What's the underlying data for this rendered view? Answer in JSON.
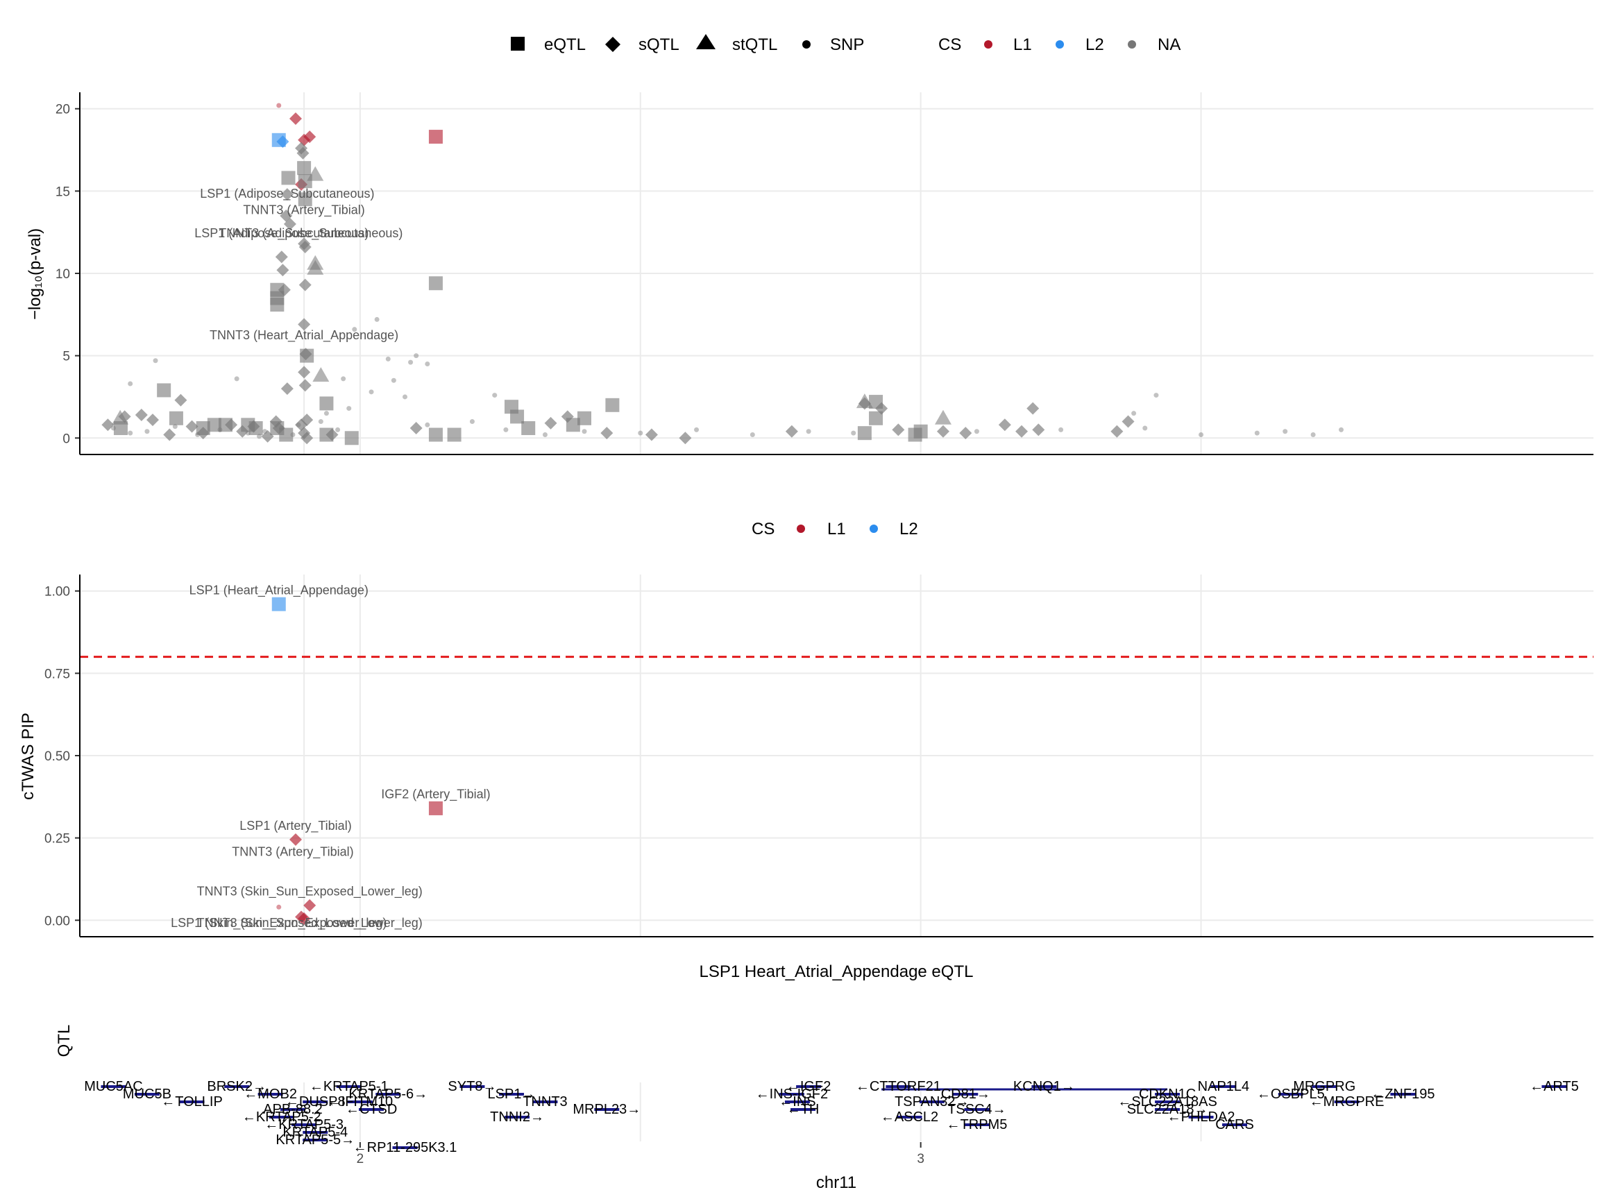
{
  "legend_top": {
    "shape_items": [
      {
        "label": "eQTL",
        "shape": "square"
      },
      {
        "label": "sQTL",
        "shape": "diamond"
      },
      {
        "label": "stQTL",
        "shape": "triangle"
      },
      {
        "label": "SNP",
        "shape": "dot"
      }
    ],
    "cs_title": "CS",
    "cs_items": [
      {
        "label": "L1",
        "color": "#b2182b"
      },
      {
        "label": "L2",
        "color": "#2b8cee"
      },
      {
        "label": "NA",
        "color": "#777777"
      }
    ]
  },
  "legend_mid": {
    "cs_title": "CS",
    "cs_items": [
      {
        "label": "L1",
        "color": "#b2182b"
      },
      {
        "label": "L2",
        "color": "#2b8cee"
      }
    ]
  },
  "panel1_ylabel": "−log₁₀(p-val)",
  "panel2_ylabel": "cTWAS PIP",
  "panel2_caption": "LSP1 Heart_Atrial_Appendage eQTL",
  "panel3_ylabel": "QTL",
  "xaxis": {
    "label": "chr11",
    "ticks": [
      "2",
      "3"
    ]
  },
  "colors": {
    "L1": "#b2182b",
    "L2": "#2b8cee",
    "NA": "#777777",
    "gene": "#1a1a8a",
    "threshold": "#e31a1c"
  },
  "chart_data": [
    {
      "type": "scatter",
      "title": "",
      "xlabel": "",
      "ylabel": "−log10(p-val)",
      "xlim": [
        1.5,
        4.2
      ],
      "ylim": [
        -1,
        21
      ],
      "yticks": [
        0,
        5,
        10,
        15,
        20
      ],
      "grid": true,
      "legend_position": "top",
      "series": [
        {
          "shape": "square",
          "cs": "L2",
          "x": [
            1.855
          ],
          "y": [
            18.1
          ]
        },
        {
          "shape": "square",
          "cs": "L1",
          "x": [
            2.135
          ],
          "y": [
            18.3
          ]
        },
        {
          "shape": "diamond",
          "cs": "L1",
          "x": [
            1.885,
            1.9,
            1.91,
            1.895
          ],
          "y": [
            19.4,
            18.1,
            18.3,
            15.4
          ]
        },
        {
          "shape": "diamond",
          "cs": "L2",
          "x": [
            1.862
          ],
          "y": [
            18.0
          ]
        },
        {
          "shape": "square",
          "cs": "NA",
          "x": [
            1.573,
            1.65,
            1.672,
            1.72,
            1.74,
            1.76,
            1.8,
            1.814,
            1.852,
            1.852,
            1.852,
            1.852,
            1.868,
            1.872,
            1.9,
            1.902,
            1.902,
            1.905,
            1.94,
            1.94,
            1.985,
            2.135,
            2.135,
            2.168,
            2.27,
            2.28,
            2.3,
            2.38,
            2.4,
            2.45,
            2.9,
            2.92,
            2.92,
            2.99,
            3.0
          ],
          "y": [
            0.6,
            2.9,
            1.2,
            0.6,
            0.8,
            0.8,
            0.8,
            0.6,
            9.0,
            8.5,
            8.1,
            0.6,
            0.2,
            15.8,
            16.4,
            15.6,
            14.5,
            5.0,
            2.1,
            0.2,
            0.0,
            9.4,
            0.2,
            0.2,
            1.9,
            1.3,
            0.6,
            0.8,
            1.2,
            2.0,
            0.3,
            2.2,
            1.2,
            0.2,
            0.4
          ]
        },
        {
          "shape": "diamond",
          "cs": "NA",
          "x": [
            1.55,
            1.58,
            1.61,
            1.63,
            1.66,
            1.68,
            1.7,
            1.72,
            1.77,
            1.79,
            1.81,
            1.835,
            1.85,
            1.855,
            1.86,
            1.862,
            1.865,
            1.868,
            1.87,
            1.875,
            1.87,
            1.895,
            1.898,
            1.9,
            1.902,
            1.902,
            1.9,
            1.903,
            1.9,
            1.902,
            1.905,
            1.895,
            1.9,
            1.905,
            1.95,
            2.1,
            2.34,
            2.37,
            2.44,
            2.52,
            2.58,
            2.77,
            2.9,
            2.93,
            2.96,
            3.04,
            3.08,
            3.15,
            3.18,
            3.2,
            3.21,
            3.35,
            3.37
          ],
          "y": [
            0.8,
            1.3,
            1.4,
            1.1,
            0.2,
            2.3,
            0.7,
            0.3,
            0.8,
            0.4,
            0.7,
            0.1,
            1.0,
            0.6,
            11.0,
            10.2,
            9.0,
            13.5,
            14.8,
            13.0,
            3.0,
            17.6,
            17.3,
            11.8,
            11.6,
            9.3,
            6.9,
            5.1,
            4.0,
            3.2,
            1.1,
            0.8,
            0.3,
            0.0,
            0.2,
            0.6,
            0.9,
            1.3,
            0.3,
            0.2,
            0.0,
            0.4,
            2.1,
            1.8,
            0.5,
            0.4,
            0.3,
            0.8,
            0.4,
            1.8,
            0.5,
            0.4,
            1.0
          ]
        },
        {
          "shape": "triangle",
          "cs": "NA",
          "x": [
            1.572,
            1.92,
            1.92,
            1.92,
            1.93,
            2.9,
            3.04
          ],
          "y": [
            1.2,
            16.0,
            10.6,
            10.3,
            3.8,
            2.2,
            1.2
          ]
        },
        {
          "shape": "dot",
          "cs": "L1",
          "x": [
            1.855
          ],
          "y": [
            20.2
          ]
        },
        {
          "shape": "dot",
          "cs": "NA",
          "x": [
            1.56,
            1.59,
            1.62,
            1.67,
            1.71,
            1.75,
            1.8,
            1.82,
            1.83,
            1.86,
            1.88,
            1.89,
            1.93,
            1.96,
            1.98,
            1.99,
            2.03,
            2.05,
            2.08,
            2.1,
            2.12,
            2.2,
            2.26,
            2.33,
            2.4,
            2.5,
            2.6,
            2.7,
            2.8,
            2.88,
            3.1,
            3.25,
            3.4,
            3.5,
            3.6,
            3.65,
            3.7,
            3.75,
            1.635,
            1.59,
            1.78,
            2.09,
            2.06,
            2.02,
            1.97,
            1.94,
            2.12,
            2.24,
            3.42,
            3.38
          ],
          "y": [
            0.6,
            0.3,
            0.4,
            0.7,
            0.2,
            0.5,
            0.3,
            0.1,
            0.4,
            0.6,
            0.2,
            0.8,
            1.0,
            0.5,
            1.8,
            6.6,
            7.2,
            4.8,
            2.5,
            5.0,
            4.5,
            1.0,
            0.5,
            0.2,
            0.4,
            0.3,
            0.5,
            0.2,
            0.4,
            0.3,
            0.4,
            0.5,
            0.6,
            0.2,
            0.3,
            0.4,
            0.2,
            0.5,
            4.7,
            3.3,
            3.6,
            4.6,
            3.5,
            2.8,
            3.6,
            1.5,
            0.8,
            2.6,
            2.6,
            1.5
          ]
        }
      ],
      "annotations": [
        {
          "text": "LSP1 (Adipose_Subcutaneous)",
          "x": 1.87,
          "y": 14.6
        },
        {
          "text": "TNNT3 (Artery_Tibial)",
          "x": 1.9,
          "y": 13.6
        },
        {
          "text": "LSP1 (Adipose_Subcutaneous)",
          "x": 1.86,
          "y": 12.2
        },
        {
          "text": "TNNT3 (Adipose_Subcutaneous)",
          "x": 1.912,
          "y": 12.2
        },
        {
          "text": "TNNT3 (Heart_Atrial_Appendage)",
          "x": 1.9,
          "y": 6.0
        }
      ]
    },
    {
      "type": "scatter",
      "title": "",
      "xlabel": "LSP1 Heart_Atrial_Appendage eQTL",
      "ylabel": "cTWAS PIP",
      "xlim": [
        1.5,
        4.2
      ],
      "ylim": [
        -0.05,
        1.05
      ],
      "yticks": [
        "0.00",
        "0.25",
        "0.50",
        "0.75",
        "1.00"
      ],
      "threshold": 0.8,
      "grid": true,
      "legend_position": "top",
      "series": [
        {
          "shape": "square",
          "cs": "L2",
          "x": [
            1.855
          ],
          "y": [
            0.96
          ]
        },
        {
          "shape": "square",
          "cs": "L1",
          "x": [
            2.135
          ],
          "y": [
            0.34
          ]
        },
        {
          "shape": "diamond",
          "cs": "L1",
          "x": [
            1.885,
            1.91,
            1.895,
            1.9
          ],
          "y": [
            0.245,
            0.045,
            0.01,
            0.005
          ]
        },
        {
          "shape": "dot",
          "cs": "L1",
          "x": [
            1.855
          ],
          "y": [
            0.04
          ]
        }
      ],
      "annotations": [
        {
          "text": "LSP1 (Heart_Atrial_Appendage)",
          "x": 1.855,
          "y": 0.99
        },
        {
          "text": "IGF2 (Artery_Tibial)",
          "x": 2.135,
          "y": 0.37
        },
        {
          "text": "LSP1 (Artery_Tibial)",
          "x": 1.885,
          "y": 0.275
        },
        {
          "text": "TNNT3 (Artery_Tibial)",
          "x": 1.88,
          "y": 0.195
        },
        {
          "text": "TNNT3 (Skin_Sun_Exposed_Lower_leg)",
          "x": 1.91,
          "y": 0.075
        },
        {
          "text": "LSP1 (Skin_Sun_Exposed_Lower_leg)",
          "x": 1.855,
          "y": -0.02
        },
        {
          "text": "TNNT3 (Skin_Sun_Exposed_Lower_leg)",
          "x": 1.91,
          "y": -0.02
        }
      ]
    },
    {
      "type": "gene_track",
      "xlabel": "chr11",
      "ylabel": "QTL",
      "xticks": [
        "2",
        "3"
      ],
      "genes": [
        {
          "label": "MUC5AC",
          "x": 1.56,
          "row": 0
        },
        {
          "label": "MUC5B",
          "x": 1.62,
          "row": 1
        },
        {
          "label": "←TOLLIP",
          "x": 1.7,
          "row": 2
        },
        {
          "label": "BRSK2→",
          "x": 1.78,
          "row": 0
        },
        {
          "label": "←MOB2",
          "x": 1.84,
          "row": 1
        },
        {
          "label": "←KRTAP5-1",
          "x": 1.98,
          "row": 0
        },
        {
          "label": "←DUSP8",
          "x": 1.92,
          "row": 2
        },
        {
          "label": "KRTAP5-6→",
          "x": 2.05,
          "row": 1
        },
        {
          "label": "←IFITM10",
          "x": 2.0,
          "row": 2
        },
        {
          "label": "APB-88.2",
          "x": 1.88,
          "row": 3
        },
        {
          "label": "←KRTAP5-2",
          "x": 1.86,
          "row": 4
        },
        {
          "label": "←CTSD",
          "x": 2.02,
          "row": 3
        },
        {
          "label": "←KRTAP5-3",
          "x": 1.9,
          "row": 5
        },
        {
          "label": "KRTAP5-4",
          "x": 1.92,
          "row": 6
        },
        {
          "label": "KRTAP5-5→",
          "x": 1.92,
          "row": 7
        },
        {
          "label": "←RP11-295K3.1",
          "x": 2.08,
          "row": 8
        },
        {
          "label": "SYT8→",
          "x": 2.2,
          "row": 0
        },
        {
          "label": "LSP1→",
          "x": 2.27,
          "row": 1
        },
        {
          "label": "TNNT3",
          "x": 2.33,
          "row": 2
        },
        {
          "label": "TNNI2→",
          "x": 2.28,
          "row": 4
        },
        {
          "label": "MRPL23→",
          "x": 2.44,
          "row": 3
        },
        {
          "label": "←IGF2",
          "x": 2.8,
          "row": 0
        },
        {
          "label": "←INS-IGF2",
          "x": 2.77,
          "row": 1
        },
        {
          "label": "←INS",
          "x": 2.78,
          "row": 2
        },
        {
          "label": "←TH",
          "x": 2.79,
          "row": 3
        },
        {
          "label": "←CTTORF21",
          "x": 2.96,
          "row": 0
        },
        {
          "label": "TSPAN32→",
          "x": 3.02,
          "row": 2
        },
        {
          "label": "CD81→",
          "x": 3.08,
          "row": 1
        },
        {
          "label": "←ASCL2",
          "x": 2.98,
          "row": 4
        },
        {
          "label": "TSSC4→",
          "x": 3.1,
          "row": 3
        },
        {
          "label": "←TRPM5",
          "x": 3.1,
          "row": 5
        },
        {
          "label": "KCNQ1→",
          "x": 3.22,
          "row": 0
        },
        {
          "label": "CDKN1C",
          "x": 3.44,
          "row": 1
        },
        {
          "label": "←SLC22A18AS",
          "x": 3.44,
          "row": 2
        },
        {
          "label": "SLC22A18→",
          "x": 3.44,
          "row": 3
        },
        {
          "label": "←PHLDA2",
          "x": 3.5,
          "row": 4
        },
        {
          "label": "NAP1L4",
          "x": 3.54,
          "row": 0
        },
        {
          "label": "CARS",
          "x": 3.56,
          "row": 5
        },
        {
          "label": "←OSBPL5",
          "x": 3.66,
          "row": 1
        },
        {
          "label": "MRGPRG",
          "x": 3.72,
          "row": 0
        },
        {
          "label": "←MRGPRE",
          "x": 3.76,
          "row": 2
        },
        {
          "label": "←ZNF195",
          "x": 3.86,
          "row": 1
        },
        {
          "label": "←ART5",
          "x": 4.13,
          "row": 0
        }
      ]
    }
  ]
}
